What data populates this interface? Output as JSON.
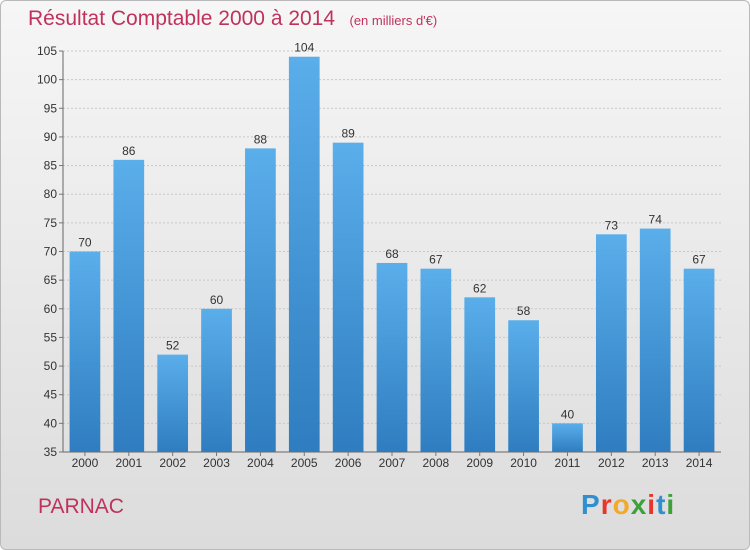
{
  "title": "Résultat Comptable 2000 à 2014",
  "unit": "(en milliers d'€)",
  "commune": "PARNAC",
  "logo": {
    "text": "Proxiti",
    "colors": [
      "#2f8fd0",
      "#e8342a",
      "#f3a92a",
      "#3da13a",
      "#e8342a",
      "#2f8fd0",
      "#3da13a"
    ]
  },
  "colors": {
    "bar_top": "#5aaeea",
    "bar_bottom": "#2f7dc0",
    "title": "#c0325c"
  },
  "chart_data": {
    "type": "bar",
    "title": "Résultat Comptable 2000 à 2014",
    "xlabel": "",
    "ylabel": "",
    "categories": [
      "2000",
      "2001",
      "2002",
      "2003",
      "2004",
      "2005",
      "2006",
      "2007",
      "2008",
      "2009",
      "2010",
      "2011",
      "2012",
      "2013",
      "2014"
    ],
    "values": [
      70,
      86,
      52,
      60,
      88,
      104,
      89,
      68,
      67,
      62,
      58,
      40,
      73,
      74,
      67
    ],
    "ylim": [
      35,
      105
    ],
    "yticks": [
      35,
      40,
      45,
      50,
      55,
      60,
      65,
      70,
      75,
      80,
      85,
      90,
      95,
      100,
      105
    ],
    "grid": true
  }
}
